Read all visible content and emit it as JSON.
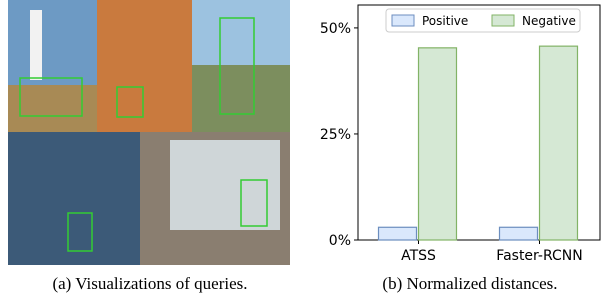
{
  "figure": {
    "caption_a": "(a) Visualizations of queries.",
    "caption_b": "(b) Normalized distances."
  },
  "chart_data": {
    "type": "bar",
    "categories": [
      "ATSS",
      "Faster-RCNN"
    ],
    "series": [
      {
        "name": "Positive",
        "color": "#dae8fc",
        "values": [
          3.0,
          3.0
        ]
      },
      {
        "name": "Negative",
        "color": "#d5e8d4",
        "values": [
          45.3,
          45.7
        ]
      }
    ],
    "ylim": [
      0,
      55.4
    ],
    "yticks": [
      {
        "value": 0,
        "label": "0%"
      },
      {
        "value": 25,
        "label": "25%"
      },
      {
        "value": 50,
        "label": "50%"
      }
    ],
    "legend": "top"
  }
}
